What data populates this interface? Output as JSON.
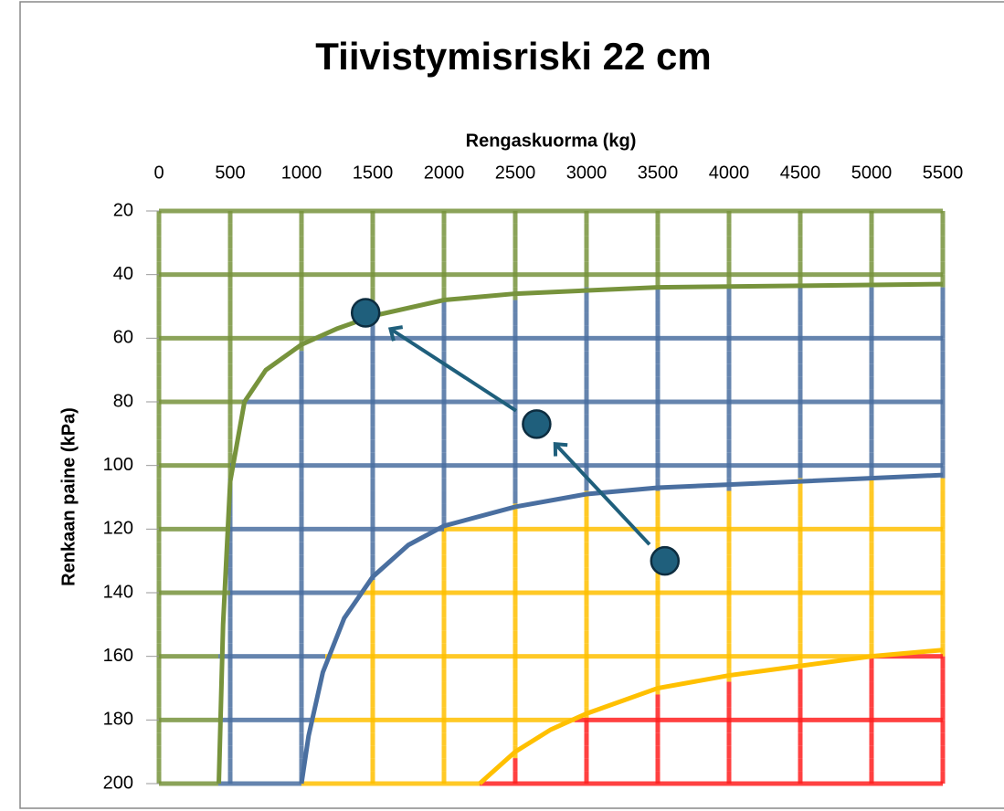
{
  "chart_data": {
    "type": "scatter",
    "title": "Tiivistymisriski 22 cm",
    "x_label": "Rengaskuorma (kg)",
    "y_label": "Renkaan paine  (kPa)",
    "xlim": [
      0,
      5500
    ],
    "xticks": [
      0,
      500,
      1000,
      1500,
      2000,
      2500,
      3000,
      3500,
      4000,
      4500,
      5000,
      5500
    ],
    "ylim": [
      20,
      200
    ],
    "yticks": [
      20,
      40,
      60,
      80,
      100,
      120,
      140,
      160,
      180,
      200
    ],
    "y_inverted": true,
    "grid": true,
    "zone_colors": [
      "#77933c",
      "#4a6fa0",
      "#ffc000",
      "#ff2020"
    ],
    "curves": [
      {
        "color": "#77933c",
        "x": [
          420,
          450,
          500,
          600,
          750,
          1000,
          1250,
          1500,
          2000,
          2500,
          3500,
          5500
        ],
        "y": [
          200,
          150,
          105,
          80,
          70,
          62,
          57,
          53,
          48,
          46,
          44,
          43
        ]
      },
      {
        "color": "#4a6fa0",
        "x": [
          1000,
          1050,
          1150,
          1300,
          1500,
          1750,
          2000,
          2500,
          3000,
          3500,
          4000,
          5500
        ],
        "y": [
          200,
          185,
          165,
          148,
          135,
          125,
          119,
          113,
          109,
          107,
          106,
          103
        ]
      },
      {
        "color": "#ffc000",
        "x": [
          2250,
          2500,
          2750,
          3000,
          3500,
          4000,
          4500,
          5000,
          5500
        ],
        "y": [
          200,
          190,
          183,
          178,
          170,
          166,
          163,
          160,
          158
        ]
      }
    ],
    "points": {
      "color": "#1f5f7c",
      "x": [
        1450,
        2650,
        3550
      ],
      "y": [
        52,
        87,
        130
      ]
    }
  }
}
